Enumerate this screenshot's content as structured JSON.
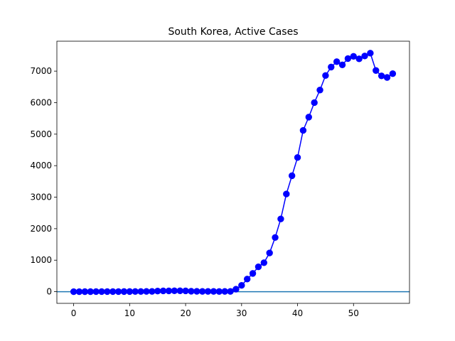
{
  "chart_data": {
    "type": "line",
    "title": "South Korea, Active Cases",
    "xlabel": "",
    "ylabel": "",
    "xlim": [
      -3,
      60
    ],
    "ylim": [
      -370,
      7950
    ],
    "xticks": [
      0,
      10,
      20,
      30,
      40,
      50
    ],
    "yticks": [
      0,
      1000,
      2000,
      3000,
      4000,
      5000,
      6000,
      7000
    ],
    "grid": false,
    "legend": "none",
    "series": [
      {
        "color": "#0000ff",
        "marker": "circle",
        "x": [
          0,
          1,
          2,
          3,
          4,
          5,
          6,
          7,
          8,
          9,
          10,
          11,
          12,
          13,
          14,
          15,
          16,
          17,
          18,
          19,
          20,
          21,
          22,
          23,
          24,
          25,
          26,
          27,
          28,
          29,
          30,
          31,
          32,
          33,
          34,
          35,
          36,
          37,
          38,
          39,
          40,
          41,
          42,
          43,
          44,
          45,
          46,
          47,
          48,
          49,
          50,
          51,
          52,
          53,
          54,
          55,
          56,
          57
        ],
        "values": [
          1,
          1,
          2,
          2,
          3,
          3,
          4,
          4,
          4,
          5,
          5,
          6,
          7,
          8,
          9,
          20,
          25,
          27,
          28,
          28,
          25,
          15,
          12,
          10,
          9,
          8,
          7,
          8,
          10,
          80,
          200,
          400,
          580,
          790,
          920,
          1230,
          1720,
          2310,
          3100,
          3680,
          4260,
          5120,
          5540,
          6000,
          6400,
          6860,
          7130,
          7300,
          7200,
          7400,
          7470,
          7390,
          7480,
          7570,
          7020,
          6850,
          6800,
          6920
        ]
      }
    ],
    "reference_lines": [
      {
        "orientation": "horizontal",
        "value": 0,
        "color": "#1f77b4"
      }
    ]
  }
}
